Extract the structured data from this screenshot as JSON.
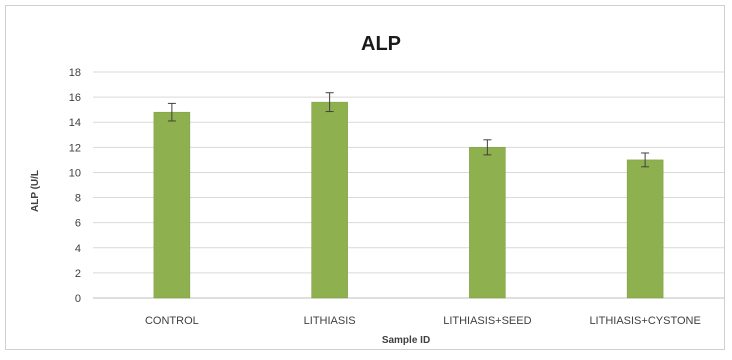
{
  "chart_data": {
    "type": "bar",
    "title": "ALP",
    "xlabel": "Sample ID",
    "ylabel": "ALP (U/L",
    "categories": [
      "CONTROL",
      "LITHIASIS",
      "LITHIASIS+SEED",
      "LITHIASIS+CYSTONE"
    ],
    "values": [
      14.8,
      15.6,
      12.0,
      11.0
    ],
    "errors": [
      0.7,
      0.75,
      0.6,
      0.55
    ],
    "ylim": [
      0,
      18
    ],
    "yticks": [
      0,
      2,
      4,
      6,
      8,
      10,
      12,
      14,
      16,
      18
    ],
    "grid": true,
    "legend": "none",
    "bar_color": "#8fb04e",
    "bar_edge_color": "#7a9a3e",
    "error_color": "#404040",
    "grid_color": "#d9d9d9"
  }
}
